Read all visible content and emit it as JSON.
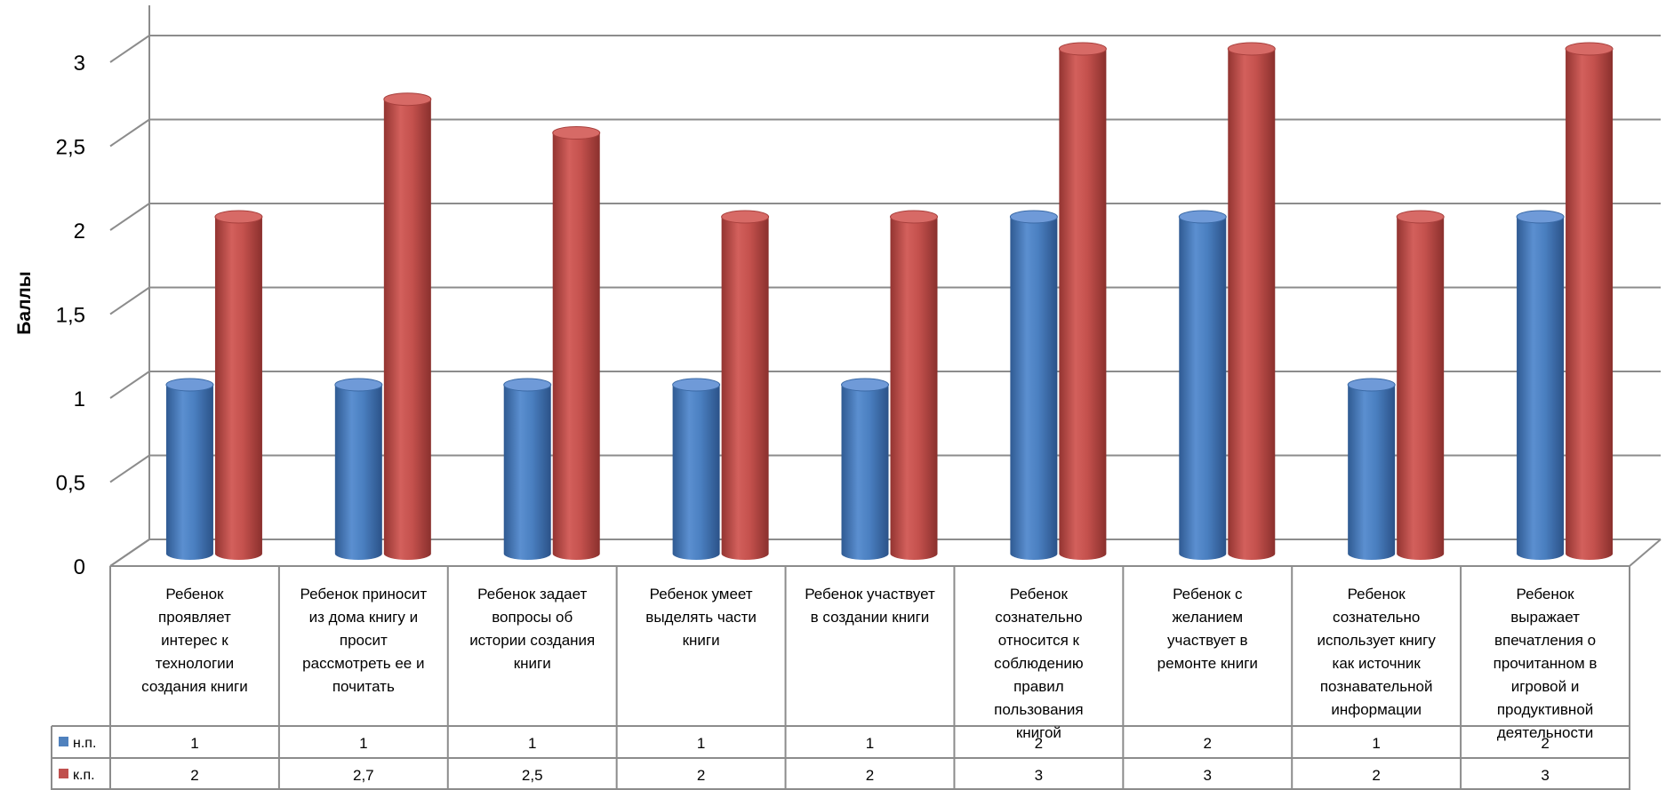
{
  "chart_data": {
    "type": "bar",
    "ylabel": "Баллы",
    "ylim": [
      0,
      3
    ],
    "yticks": [
      "0",
      "0,5",
      "1",
      "1,5",
      "2",
      "2,5",
      "3"
    ],
    "grid": true,
    "legend": "data-table",
    "categories": [
      [
        "Ребенок",
        "проявляет",
        "интерес к",
        "технологии",
        "создания книги"
      ],
      [
        "Ребенок приносит",
        "из дома книгу и",
        "просит",
        "рассмотреть ее и",
        "почитать"
      ],
      [
        "Ребенок задает",
        "вопросы об",
        "истории создания",
        "книги"
      ],
      [
        "Ребенок умеет",
        "выделять части",
        "книги"
      ],
      [
        "Ребенок участвует",
        "в создании книги"
      ],
      [
        "Ребенок",
        "сознательно",
        "относится к",
        "соблюдению",
        "правил",
        "пользования",
        "книгой"
      ],
      [
        "Ребенок с",
        "желанием",
        "участвует в",
        "ремонте книги"
      ],
      [
        "Ребенок",
        "сознательно",
        "использует книгу",
        "как источник",
        "познавательной",
        "информации"
      ],
      [
        "Ребенок",
        "выражает",
        "впечатления о",
        "прочитанном в",
        "игровой и",
        "продуктивной",
        "деятельности"
      ]
    ],
    "series": [
      {
        "name": "н.п.",
        "color": "#4f81bd",
        "values": [
          1,
          1,
          1,
          1,
          1,
          2,
          2,
          1,
          2
        ],
        "labels": [
          "1",
          "1",
          "1",
          "1",
          "1",
          "2",
          "2",
          "1",
          "2"
        ]
      },
      {
        "name": "к.п.",
        "color": "#c0504d",
        "values": [
          2,
          2.7,
          2.5,
          2,
          2,
          3,
          3,
          2,
          3
        ],
        "labels": [
          "2",
          "2,7",
          "2,5",
          "2",
          "2",
          "3",
          "3",
          "2",
          "3"
        ]
      }
    ]
  }
}
